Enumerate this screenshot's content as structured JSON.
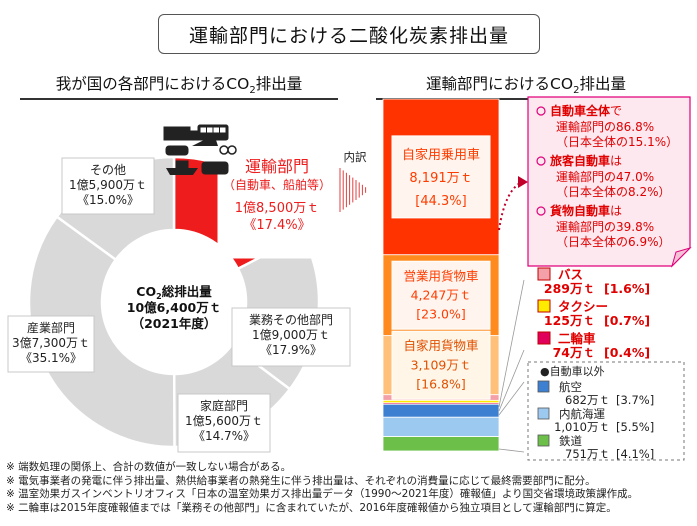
{
  "title": "運輸部門における二酸化炭素排出量",
  "left_heading": {
    "pre": "我が国の各部門における",
    "co": "CO",
    "sub": "2",
    "post": "排出量"
  },
  "right_heading": {
    "pre": "運輸部門における",
    "co": "CO",
    "sub": "2",
    "post": "排出量"
  },
  "naiyaku": "内訳",
  "colors": {
    "transport": "#ee1c1c",
    "gray": "#d9d9d9",
    "private_car": "#ff3300",
    "commercial_truck": "#ff8a1e",
    "private_truck": "#ffc07a",
    "pink_box_bg": "#fde8f0",
    "pink_border": "#e0007a",
    "bus": "#f3a0a8",
    "taxi": "#ffeb00",
    "bike": "#e0005c",
    "aviation": "#3d7fd0",
    "shipping": "#9cc9ef",
    "rail": "#6cc04a"
  },
  "chart_data": [
    {
      "type": "pie",
      "title": "",
      "center": {
        "line1_pre": "CO",
        "line1_sub": "2",
        "line1_post": "総排出量",
        "line2": "10億6,400万ｔ",
        "line3": "（2021年度）"
      },
      "slices": [
        {
          "key": "transport",
          "label": "運輸部門",
          "sub": "（自動車、船舶等）",
          "amount": "1億8,500万ｔ",
          "pct_text": "《17.4%》",
          "value": 17.4
        },
        {
          "key": "business",
          "label": "業務その他部門",
          "amount": "1億9,000万ｔ",
          "pct_text": "《17.9%》",
          "value": 17.9
        },
        {
          "key": "household",
          "label": "家庭部門",
          "amount": "1億5,600万ｔ",
          "pct_text": "《14.7%》",
          "value": 14.7
        },
        {
          "key": "industry",
          "label": "産業部門",
          "amount": "3億7,300万ｔ",
          "pct_text": "《35.1%》",
          "value": 35.1
        },
        {
          "key": "other",
          "label": "その他",
          "amount": "1億5,900万ｔ",
          "pct_text": "《15.0%》",
          "value": 15.0
        }
      ]
    },
    {
      "type": "bar",
      "title": "",
      "stacked": true,
      "segments": [
        {
          "key": "private_car",
          "label": "自家用乗用車",
          "amount": "8,191万ｔ",
          "pct_text": "[44.3%]",
          "value": 44.3
        },
        {
          "key": "commercial_truck",
          "label": "営業用貨物車",
          "amount": "4,247万ｔ",
          "pct_text": "[23.0%]",
          "value": 23.0
        },
        {
          "key": "private_truck",
          "label": "自家用貨物車",
          "amount": "3,109万ｔ",
          "pct_text": "[16.8%]",
          "value": 16.8
        },
        {
          "key": "bus",
          "label": "バス",
          "amount": "289万ｔ",
          "pct_text": "[1.6%]",
          "value": 1.6
        },
        {
          "key": "taxi",
          "label": "タクシー",
          "amount": "125万ｔ",
          "pct_text": "[0.7%]",
          "value": 0.7
        },
        {
          "key": "bike",
          "label": "二輪車",
          "amount": "74万ｔ",
          "pct_text": "[0.4%]",
          "value": 0.4
        },
        {
          "key": "aviation",
          "label": "航空",
          "amount": "682万ｔ",
          "pct_text": "[3.7%]",
          "value": 3.7
        },
        {
          "key": "shipping",
          "label": "内航海運",
          "amount": "1,010万ｔ",
          "pct_text": "[5.5%]",
          "value": 5.5
        },
        {
          "key": "rail",
          "label": "鉄道",
          "amount": "751万ｔ",
          "pct_text": "[4.1%]",
          "value": 4.1
        }
      ]
    }
  ],
  "callout": {
    "items": [
      {
        "head": "自動車全体",
        "head_suffix": "で",
        "line2": "運輸部門の86.8%",
        "line3": "（日本全体の15.1%）"
      },
      {
        "head": "旅客自動車",
        "head_suffix": "は",
        "line2": "運輸部門の47.0%",
        "line3": "（日本全体の8.2%）"
      },
      {
        "head": "貨物自動車",
        "head_suffix": "は",
        "line2": "運輸部門の39.8%",
        "line3": "（日本全体の6.9%）"
      }
    ]
  },
  "non_auto_label": "●自動車以外",
  "notes": [
    "※ 端数処理の関係上、合計の数値が一致しない場合がある。",
    "※ 電気事業者の発電に伴う排出量、熱供給事業者の熱発生に伴う排出量は、それぞれの消費量に応じて最終需要部門に配分。",
    "※ 温室効果ガスインベントリオフィス「日本の温室効果ガス排出量データ（1990～2021年度）確報値」より国交省環境政策課作成。",
    "※ 二輪車は2015年度確報値までは「業務その他部門」に含まれていたが、2016年度確報値から独立項目として運輸部門に算定。"
  ]
}
